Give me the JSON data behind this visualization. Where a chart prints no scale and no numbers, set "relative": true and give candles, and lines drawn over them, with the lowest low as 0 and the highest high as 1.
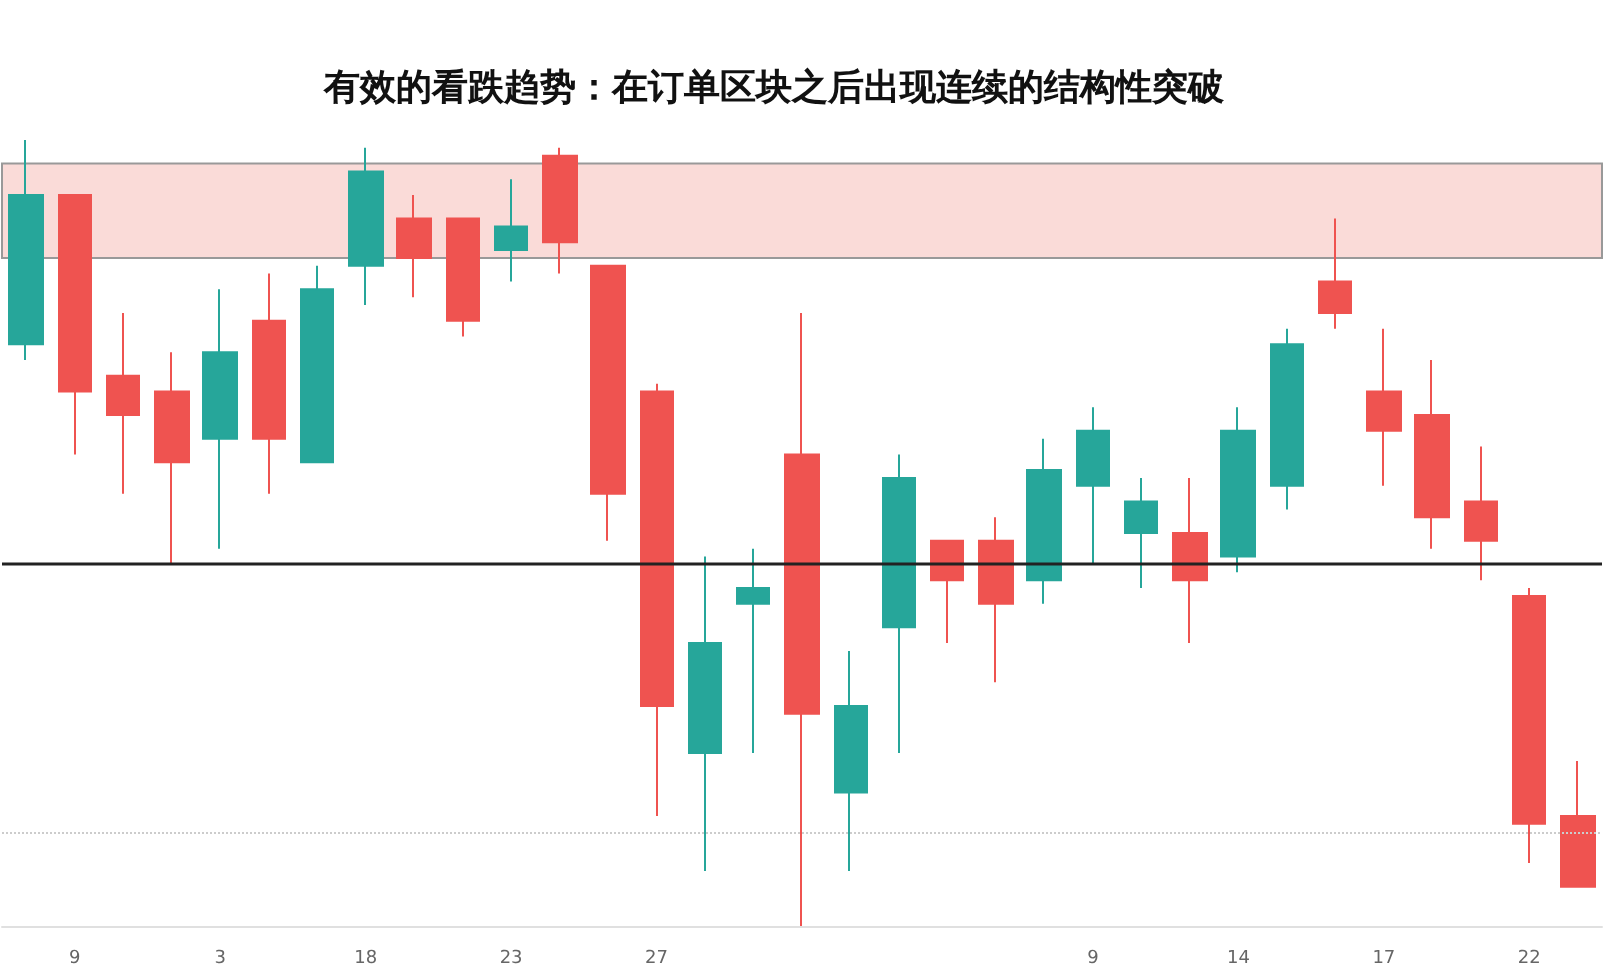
{
  "chart_data": {
    "type": "candlestick",
    "title": "有效的看跌趋势：在订单区块之后出现连续的结构性突破",
    "relative": true,
    "categories": [
      null,
      "9",
      null,
      null,
      "3",
      null,
      null,
      "18",
      null,
      null,
      "23",
      null,
      null,
      "27",
      null,
      null,
      null,
      null,
      null,
      null,
      null,
      null,
      "9",
      null,
      null,
      "14",
      null,
      null,
      "17",
      null,
      null,
      "22",
      null
    ],
    "ohlc": [
      [
        0.74,
        1,
        0.72,
        0.93
      ],
      [
        0.93,
        0.93,
        0.6,
        0.68
      ],
      [
        0.7,
        0.78,
        0.55,
        0.65
      ],
      [
        0.68,
        0.73,
        0.46,
        0.59
      ],
      [
        0.62,
        0.81,
        0.48,
        0.73
      ],
      [
        0.77,
        0.83,
        0.55,
        0.62
      ],
      [
        0.59,
        0.84,
        0.59,
        0.81
      ],
      [
        0.84,
        0.99,
        0.79,
        0.96
      ],
      [
        0.9,
        0.93,
        0.8,
        0.85
      ],
      [
        0.9,
        0.9,
        0.75,
        0.77
      ],
      [
        0.86,
        0.95,
        0.82,
        0.89
      ],
      [
        0.98,
        0.99,
        0.83,
        0.87
      ],
      [
        0.84,
        0.84,
        0.49,
        0.55
      ],
      [
        0.68,
        0.69,
        0.14,
        0.28
      ],
      [
        0.22,
        0.47,
        0.07,
        0.36
      ],
      [
        0.41,
        0.48,
        0.22,
        0.43
      ],
      [
        0.6,
        0.78,
        0,
        0.27
      ],
      [
        0.17,
        0.35,
        0.07,
        0.28
      ],
      [
        0.38,
        0.6,
        0.22,
        0.57
      ],
      [
        0.49,
        0.49,
        0.36,
        0.44
      ],
      [
        0.49,
        0.52,
        0.31,
        0.41
      ],
      [
        0.44,
        0.62,
        0.41,
        0.58
      ],
      [
        0.56,
        0.66,
        0.46,
        0.63
      ],
      [
        0.5,
        0.57,
        0.43,
        0.54
      ],
      [
        0.5,
        0.57,
        0.36,
        0.44
      ],
      [
        0.47,
        0.66,
        0.45,
        0.63
      ],
      [
        0.56,
        0.76,
        0.53,
        0.74
      ],
      [
        0.82,
        0.9,
        0.76,
        0.78
      ],
      [
        0.68,
        0.76,
        0.56,
        0.63
      ],
      [
        0.65,
        0.72,
        0.48,
        0.52
      ],
      [
        0.54,
        0.61,
        0.44,
        0.49
      ],
      [
        0.42,
        0.43,
        0.08,
        0.13
      ],
      [
        0.14,
        0.21,
        0.05,
        0.05
      ]
    ],
    "colors": [
      "#26a69a",
      "#ef5350",
      "#ef5350",
      "#ef5350",
      "#26a69a",
      "#ef5350",
      "#26a69a",
      "#26a69a",
      "#ef5350",
      "#ef5350",
      "#26a69a",
      "#ef5350",
      "#ef5350",
      "#ef5350",
      "#26a69a",
      "#26a69a",
      "#ef5350",
      "#26a69a",
      "#26a69a",
      "#ef5350",
      "#ef5350",
      "#26a69a",
      "#26a69a",
      "#26a69a",
      "#ef5350",
      "#26a69a",
      "#26a69a",
      "#ef5350",
      "#ef5350",
      "#ef5350",
      "#ef5350",
      "#ef5350",
      "#ef5350"
    ],
    "ref_lines": [
      {
        "axis": "y",
        "value": 0.46,
        "color": "#222222",
        "line_style": "solid"
      },
      {
        "axis": "y",
        "value": 0.12,
        "color": "#cccccc",
        "line_style": "dotted"
      }
    ],
    "bands": [
      {
        "axis": "y",
        "from": 0.85,
        "to": 0.97,
        "color": "#fadbd8"
      }
    ]
  }
}
